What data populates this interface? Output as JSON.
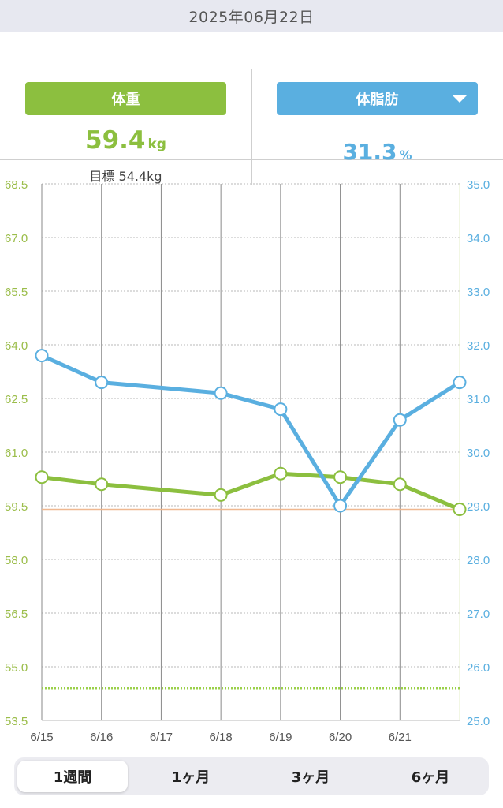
{
  "date_bar": {
    "text": "2025年06月22日"
  },
  "weight": {
    "label": "体重",
    "value": "59.4",
    "unit": "kg",
    "goal_label": "目標",
    "goal_value": "54.4kg",
    "color": "#8cbf3f"
  },
  "body_fat": {
    "label": "体脂肪",
    "value": "31.3",
    "unit": "%",
    "color": "#5aafe0",
    "dropdown_icon": "caret-down-icon"
  },
  "period_tabs": {
    "items": [
      {
        "label": "1週間",
        "active": true
      },
      {
        "label": "1ヶ月",
        "active": false
      },
      {
        "label": "3ヶ月",
        "active": false
      },
      {
        "label": "6ヶ月",
        "active": false
      }
    ]
  },
  "chart_data": {
    "type": "line",
    "x": [
      "6/15",
      "6/16",
      "6/17",
      "6/18",
      "6/19",
      "6/20",
      "6/21",
      "6/22"
    ],
    "x_tick_labels": [
      "6/15",
      "6/16",
      "6/17",
      "6/18",
      "6/19",
      "6/20",
      "6/21"
    ],
    "y_left": {
      "range": [
        53.5,
        68.5
      ],
      "ticks": [
        "68.5",
        "67.0",
        "65.5",
        "64.0",
        "62.5",
        "61.0",
        "59.5",
        "58.0",
        "56.5",
        "55.0",
        "53.5"
      ],
      "color": "#9bbd4a"
    },
    "y_right": {
      "range": [
        25.0,
        35.0
      ],
      "ticks": [
        "35.0",
        "34.0",
        "33.0",
        "32.0",
        "31.0",
        "30.0",
        "29.0",
        "28.0",
        "27.0",
        "26.0",
        "25.0"
      ],
      "color": "#5aafe0"
    },
    "series": [
      {
        "axis": "left",
        "color": "#8cbf3f",
        "points": [
          {
            "x": "6/15",
            "y": 60.3
          },
          {
            "x": "6/16",
            "y": 60.1
          },
          {
            "x": "6/18",
            "y": 59.8
          },
          {
            "x": "6/19",
            "y": 60.4
          },
          {
            "x": "6/20",
            "y": 60.3
          },
          {
            "x": "6/21",
            "y": 60.1
          },
          {
            "x": "6/22",
            "y": 59.4
          }
        ]
      },
      {
        "axis": "right",
        "color": "#5aafe0",
        "points": [
          {
            "x": "6/15",
            "y": 31.8
          },
          {
            "x": "6/16",
            "y": 31.3
          },
          {
            "x": "6/18",
            "y": 31.1
          },
          {
            "x": "6/19",
            "y": 30.8
          },
          {
            "x": "6/20",
            "y": 29.0
          },
          {
            "x": "6/21",
            "y": 30.6
          },
          {
            "x": "6/22",
            "y": 31.3
          }
        ]
      }
    ],
    "reference_lines": [
      {
        "axis": "left",
        "value": 59.4,
        "color": "#f0b890",
        "style": "solid"
      },
      {
        "axis": "left",
        "value": 54.4,
        "color": "#9bd04a",
        "style": "dotted"
      }
    ],
    "grid": true
  }
}
